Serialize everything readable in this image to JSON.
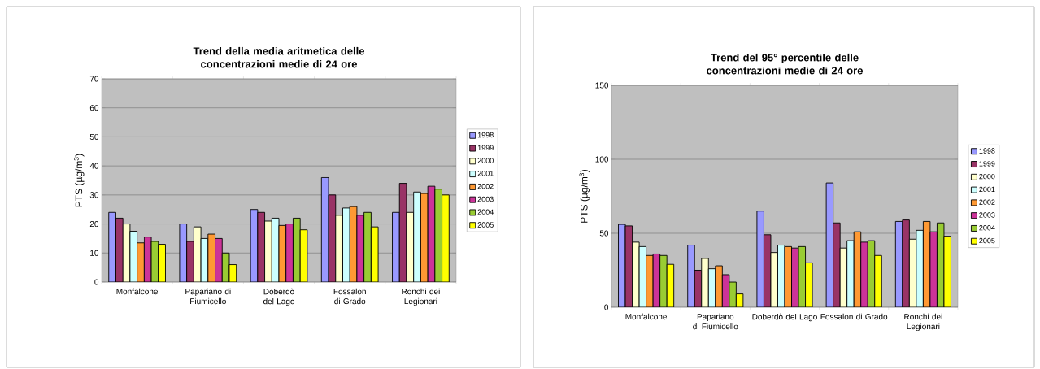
{
  "chart_data": [
    {
      "type": "bar",
      "title": "Trend della media aritmetica delle concentrazioni medie di 24 ore",
      "ylabel": "PTS (µg/m$^{3}$)",
      "categories": [
        "Monfalcone",
        "Papariano di Fiumicello",
        "Doberdò del Lago",
        "Fossalon di Grado",
        "Ronchi dei Legionari"
      ],
      "ylim": [
        0,
        70
      ],
      "yticks": [
        0,
        10,
        20,
        30,
        40,
        50,
        60,
        70
      ],
      "grid": "y",
      "legend": "right",
      "series": [
        {
          "name": "1998",
          "color": "#9999ff",
          "values": [
            24,
            20,
            25,
            36,
            24
          ]
        },
        {
          "name": "1999",
          "color": "#993366",
          "values": [
            22,
            14,
            24,
            30,
            34
          ]
        },
        {
          "name": "2000",
          "color": "#ffffcc",
          "values": [
            20,
            19,
            21,
            23,
            24
          ]
        },
        {
          "name": "2001",
          "color": "#ccffff",
          "values": [
            17.5,
            15,
            22,
            25.5,
            31
          ]
        },
        {
          "name": "2002",
          "color": "#ff9933",
          "values": [
            13.5,
            16.5,
            19.5,
            26,
            30.5
          ]
        },
        {
          "name": "2003",
          "color": "#cc3399",
          "values": [
            15.5,
            15,
            20,
            23,
            33
          ]
        },
        {
          "name": "2004",
          "color": "#99cc33",
          "values": [
            14,
            10,
            22,
            24,
            32
          ]
        },
        {
          "name": "2005",
          "color": "#ffff00",
          "values": [
            13,
            6,
            18,
            19,
            30
          ]
        }
      ]
    },
    {
      "type": "bar",
      "title": "Trend del 95° percentile delle concentrazioni medie di 24 ore",
      "ylabel": "PTS (µg/m$^{3}$)",
      "categories": [
        "Monfalcone",
        "Papariano di Fiumicello",
        "Doberdò del Lago",
        "Fossalon di Grado",
        "Ronchi dei Legionari"
      ],
      "ylim": [
        0,
        150
      ],
      "yticks": [
        0,
        50,
        100,
        150
      ],
      "grid": "y",
      "legend": "right",
      "series": [
        {
          "name": "1998",
          "color": "#9999ff",
          "values": [
            56,
            42,
            65,
            84,
            58
          ]
        },
        {
          "name": "1999",
          "color": "#993366",
          "values": [
            55,
            25,
            49,
            57,
            59
          ]
        },
        {
          "name": "2000",
          "color": "#ffffcc",
          "values": [
            44,
            33,
            37,
            40,
            46
          ]
        },
        {
          "name": "2001",
          "color": "#ccffff",
          "values": [
            41,
            26,
            42,
            45,
            52
          ]
        },
        {
          "name": "2002",
          "color": "#ff9933",
          "values": [
            35,
            28,
            41,
            51,
            58
          ]
        },
        {
          "name": "2003",
          "color": "#cc3399",
          "values": [
            36,
            22,
            40,
            44,
            51
          ]
        },
        {
          "name": "2004",
          "color": "#99cc33",
          "values": [
            35,
            17,
            41,
            45,
            57
          ]
        },
        {
          "name": "2005",
          "color": "#ffff00",
          "values": [
            29,
            9,
            30,
            35,
            48
          ]
        }
      ]
    }
  ]
}
